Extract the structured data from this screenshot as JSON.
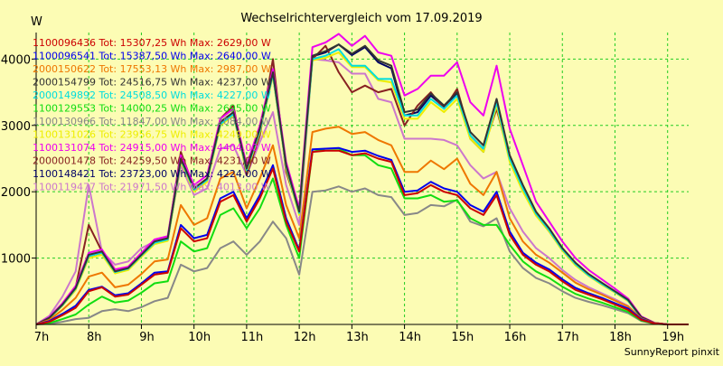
{
  "colors": {
    "background": "#fcfcb4",
    "plot_background": "#fcfcb4",
    "grid": "#22cc22",
    "axis": "#000000"
  },
  "chart_data": {
    "type": "line",
    "title": "Wechselrichtervergleich vom 17.09.2019",
    "ylabel": "W",
    "xlabel": "",
    "footer": "SunnyReport pinxit",
    "xlim": [
      7,
      19.4
    ],
    "ylim": [
      0,
      4400
    ],
    "yticks": [
      1000,
      2000,
      3000,
      4000
    ],
    "xticks": [
      "7h",
      "8h",
      "9h",
      "10h",
      "11h",
      "12h",
      "13h",
      "14h",
      "15h",
      "16h",
      "17h",
      "18h",
      "19h"
    ],
    "grid": true,
    "legend_position": "top-left",
    "x": [
      7.0,
      7.25,
      7.5,
      7.75,
      8.0,
      8.25,
      8.5,
      8.75,
      9.0,
      9.25,
      9.5,
      9.75,
      10.0,
      10.25,
      10.5,
      10.75,
      11.0,
      11.25,
      11.5,
      11.75,
      12.0,
      12.25,
      12.5,
      12.75,
      13.0,
      13.25,
      13.5,
      13.75,
      14.0,
      14.25,
      14.5,
      14.75,
      15.0,
      15.25,
      15.5,
      15.75,
      16.0,
      16.25,
      16.5,
      16.75,
      17.0,
      17.25,
      17.5,
      17.75,
      18.0,
      18.25,
      18.5,
      18.75,
      19.0,
      19.25,
      19.4
    ],
    "series": [
      {
        "name": "1100096436",
        "total": "15307,25",
        "max": "2629,00",
        "color": "#cc0000",
        "values": [
          0,
          40,
          140,
          250,
          500,
          560,
          420,
          450,
          600,
          750,
          780,
          1450,
          1250,
          1300,
          1850,
          1950,
          1550,
          1900,
          2350,
          1550,
          1100,
          2600,
          2620,
          2620,
          2550,
          2580,
          2500,
          2450,
          1950,
          1980,
          2100,
          2000,
          1950,
          1750,
          1650,
          1950,
          1350,
          1050,
          900,
          800,
          650,
          520,
          450,
          380,
          300,
          220,
          70,
          15,
          0,
          0,
          0
        ]
      },
      {
        "name": "1100096541",
        "total": "15387,50",
        "max": "2640,00",
        "color": "#0000ee",
        "values": [
          0,
          50,
          160,
          280,
          520,
          570,
          440,
          470,
          620,
          780,
          800,
          1500,
          1300,
          1350,
          1900,
          2000,
          1600,
          1950,
          2400,
          1600,
          1120,
          2640,
          2650,
          2660,
          2600,
          2620,
          2540,
          2480,
          2000,
          2020,
          2150,
          2050,
          2000,
          1800,
          1700,
          2000,
          1400,
          1080,
          930,
          830,
          680,
          550,
          470,
          400,
          320,
          240,
          80,
          18,
          0,
          0,
          0
        ]
      },
      {
        "name": "2000150622",
        "total": "17553,13",
        "max": "2987,00",
        "color": "#ee7700",
        "values": [
          0,
          70,
          220,
          400,
          720,
          780,
          560,
          600,
          760,
          950,
          980,
          1800,
          1500,
          1600,
          2200,
          2300,
          1750,
          2200,
          2700,
          1800,
          1300,
          2900,
          2950,
          2980,
          2870,
          2900,
          2780,
          2700,
          2300,
          2300,
          2470,
          2340,
          2500,
          2120,
          1950,
          2300,
          1600,
          1250,
          1050,
          930,
          780,
          630,
          530,
          450,
          360,
          270,
          90,
          20,
          0,
          0,
          0
        ]
      },
      {
        "name": "2000154799",
        "total": "24516,75",
        "max": "4237,00",
        "color": "#333333",
        "values": [
          0,
          100,
          300,
          550,
          1050,
          1100,
          800,
          850,
          1050,
          1250,
          1300,
          2500,
          2050,
          2200,
          3050,
          3200,
          2350,
          2950,
          3800,
          2400,
          1700,
          4050,
          4120,
          4220,
          4080,
          4200,
          3980,
          3900,
          3200,
          3240,
          3480,
          3300,
          3500,
          2900,
          2700,
          3400,
          2550,
          2100,
          1700,
          1450,
          1150,
          930,
          760,
          630,
          500,
          370,
          110,
          22,
          0,
          0,
          0
        ]
      },
      {
        "name": "2000149892",
        "total": "24508,50",
        "max": "4227,00",
        "color": "#00dddd",
        "values": [
          0,
          95,
          290,
          540,
          1030,
          1080,
          790,
          840,
          1040,
          1230,
          1280,
          2480,
          2030,
          2180,
          3020,
          3170,
          2330,
          2920,
          3770,
          2380,
          1680,
          4000,
          4050,
          4150,
          3900,
          3900,
          3700,
          3700,
          3150,
          3150,
          3400,
          3250,
          3450,
          2850,
          2650,
          3350,
          2500,
          2050,
          1670,
          1420,
          1130,
          910,
          740,
          610,
          490,
          360,
          100,
          20,
          0,
          0,
          0
        ]
      },
      {
        "name": "1100129553",
        "total": "14000,25",
        "max": "2695,00",
        "color": "#11dd11",
        "values": [
          0,
          20,
          80,
          150,
          300,
          420,
          330,
          360,
          480,
          620,
          650,
          1250,
          1100,
          1150,
          1650,
          1750,
          1450,
          1750,
          2200,
          1500,
          1000,
          2600,
          2650,
          2650,
          2550,
          2550,
          2400,
          2350,
          1900,
          1900,
          1950,
          1850,
          1870,
          1600,
          1500,
          1500,
          1200,
          950,
          800,
          700,
          570,
          460,
          390,
          330,
          260,
          190,
          60,
          10,
          0,
          0,
          0
        ]
      },
      {
        "name": "1100130966",
        "total": "11847,00",
        "max": "2084,00",
        "color": "#888888",
        "values": [
          0,
          10,
          40,
          80,
          100,
          200,
          230,
          200,
          260,
          350,
          400,
          900,
          800,
          850,
          1150,
          1250,
          1050,
          1250,
          1550,
          1300,
          750,
          2000,
          2020,
          2080,
          2000,
          2050,
          1950,
          1920,
          1650,
          1680,
          1800,
          1780,
          1880,
          1550,
          1480,
          1600,
          1100,
          850,
          700,
          620,
          500,
          400,
          340,
          290,
          230,
          170,
          50,
          10,
          0,
          0,
          0
        ]
      },
      {
        "name": "1100131026",
        "total": "23956,75",
        "max": "4249,00",
        "color": "#eeee00",
        "values": [
          0,
          90,
          280,
          520,
          1000,
          1050,
          770,
          820,
          1020,
          1210,
          1260,
          2450,
          2000,
          2150,
          3000,
          3150,
          2300,
          2900,
          3750,
          2350,
          1650,
          3980,
          4020,
          4100,
          3880,
          3880,
          3680,
          3650,
          3100,
          3100,
          3350,
          3200,
          3400,
          2800,
          2600,
          3300,
          2450,
          2000,
          1640,
          1400,
          1110,
          890,
          730,
          600,
          480,
          350,
          100,
          20,
          0,
          0,
          0
        ]
      },
      {
        "name": "1100131074",
        "total": "24915,00",
        "max": "4404,00",
        "color": "#ee00ee",
        "values": [
          0,
          110,
          320,
          580,
          1080,
          1130,
          830,
          870,
          1080,
          1280,
          1330,
          2550,
          2100,
          2250,
          3100,
          3250,
          2400,
          3000,
          3850,
          2450,
          1750,
          4180,
          4250,
          4380,
          4200,
          4350,
          4100,
          4050,
          3450,
          3550,
          3750,
          3750,
          3950,
          3350,
          3150,
          3900,
          2950,
          2400,
          1850,
          1550,
          1250,
          1000,
          820,
          680,
          540,
          390,
          120,
          25,
          0,
          0,
          0
        ]
      },
      {
        "name": "2000001478",
        "total": "24259,50",
        "max": "4231,00",
        "color": "#882222",
        "values": [
          0,
          100,
          300,
          560,
          1500,
          1100,
          800,
          850,
          1050,
          1250,
          1300,
          2600,
          2050,
          2200,
          3100,
          3300,
          2250,
          2850,
          4000,
          2300,
          1700,
          4000,
          4200,
          3800,
          3500,
          3600,
          3500,
          3550,
          3000,
          3300,
          3500,
          3250,
          3550,
          2850,
          2650,
          3250,
          2500,
          2050,
          1650,
          1400,
          1120,
          900,
          740,
          610,
          490,
          360,
          100,
          20,
          0,
          0,
          0
        ]
      },
      {
        "name": "1100148421",
        "total": "23723,00",
        "max": "4224,00",
        "color": "#000066",
        "values": [
          0,
          95,
          290,
          540,
          1030,
          1080,
          780,
          830,
          1030,
          1220,
          1270,
          2470,
          2020,
          2170,
          3010,
          3160,
          2320,
          2910,
          3760,
          2370,
          1670,
          4040,
          4100,
          4220,
          4060,
          4180,
          3950,
          3860,
          3150,
          3200,
          3450,
          3280,
          3480,
          2800,
          2600,
          3350,
          2480,
          2030,
          1660,
          1410,
          1120,
          900,
          740,
          610,
          490,
          360,
          100,
          20,
          0,
          0,
          0
        ]
      },
      {
        "name": "1100119477",
        "total": "21971,50",
        "max": "4013,00",
        "color": "#cc77cc",
        "values": [
          0,
          130,
          420,
          800,
          2100,
          1100,
          900,
          950,
          1150,
          1250,
          1300,
          2400,
          1950,
          2050,
          2650,
          2700,
          2250,
          2750,
          3200,
          2100,
          1500,
          4000,
          3980,
          3950,
          3780,
          3780,
          3400,
          3350,
          2800,
          2800,
          2800,
          2780,
          2700,
          2400,
          2200,
          2300,
          1750,
          1400,
          1150,
          1000,
          820,
          670,
          560,
          470,
          380,
          280,
          80,
          15,
          0,
          0,
          0
        ]
      }
    ]
  }
}
